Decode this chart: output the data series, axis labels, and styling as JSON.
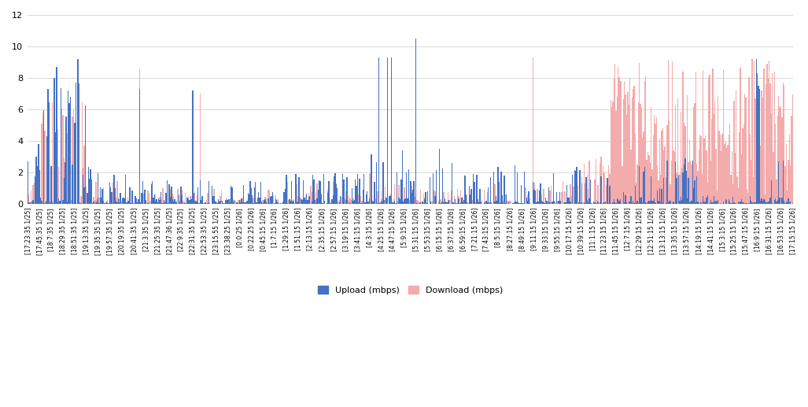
{
  "upload_color": "#4472C4",
  "download_color": "#F4ABAB",
  "background_color": "#FFFFFF",
  "grid_color": "#D9D9D9",
  "ylim": [
    0,
    12
  ],
  "yticks": [
    0,
    2,
    4,
    6,
    8,
    10,
    12
  ],
  "legend_upload": "Upload (mbps)",
  "legend_download": "Download (mbps)",
  "figsize": [
    10.27,
    5.17
  ],
  "dpi": 100,
  "tick_labels": [
    "[17:23:35 1/25]",
    "[17:45:35 1/25]",
    "[18:7:35 1/25]",
    "[18:29:35 1/25]",
    "[18:51:35 1/25]",
    "[19:13:35 1/25]",
    "[19:35:35 1/25]",
    "[19:57:35 1/25]",
    "[20:19:35 1/25]",
    "[20:41:35 1/25]",
    "[21:3:35 1/25]",
    "[21:25:35 1/25]",
    "[21:47:36 1/25]",
    "[22:9:35 1/25]",
    "[22:31:35 1/25]",
    "[22:53:35 1/25]",
    "[23:15:55 1/25]",
    "[23:38:25 1/25]",
    "[0:0:25 1/26]",
    "[0:22:25 1/26]",
    "[0:45:15 1/26]",
    "[1:7:15 1/26]",
    "[1:29:15 1/26]",
    "[1:51:15 1/26]",
    "[2:13:15 1/26]",
    "[2:35:15 1/26]",
    "[2:57:15 1/26]",
    "[3:19:15 1/26]",
    "[3:41:15 1/26]",
    "[4:3:15 1/26]",
    "[4:25:15 1/26]",
    "[4:47:15 1/26]",
    "[5:9:15 1/26]",
    "[5:31:15 1/26]",
    "[5:53:15 1/26]",
    "[6:15:15 1/26]",
    "[6:37:15 1/26]",
    "[6:59:15 1/26]",
    "[7:21:15 1/26]",
    "[7:43:15 1/26]",
    "[8:5:15 1/26]",
    "[8:27:15 1/26]",
    "[8:49:15 1/26]",
    "[9:11:15 1/26]",
    "[9:33:15 1/26]",
    "[9:55:15 1/26]",
    "[10:17:15 1/26]",
    "[10:39:15 1/26]",
    "[11:1:15 1/26]",
    "[11:23:15 1/26]",
    "[11:45:15 1/26]",
    "[12:7:15 1/26]",
    "[12:29:15 1/26]",
    "[12:51:15 1/26]",
    "[13:13:15 1/26]",
    "[13:35:15 1/26]",
    "[13:57:15 1/26]",
    "[14:19:15 1/26]",
    "[14:41:15 1/26]",
    "[15:3:15 1/26]",
    "[15:25:15 1/26]",
    "[15:47:15 1/26]",
    "[16:9:15 1/26]",
    "[16:31:15 1/26]",
    "[16:53:15 1/26]",
    "[17:15:15 1/26]"
  ]
}
